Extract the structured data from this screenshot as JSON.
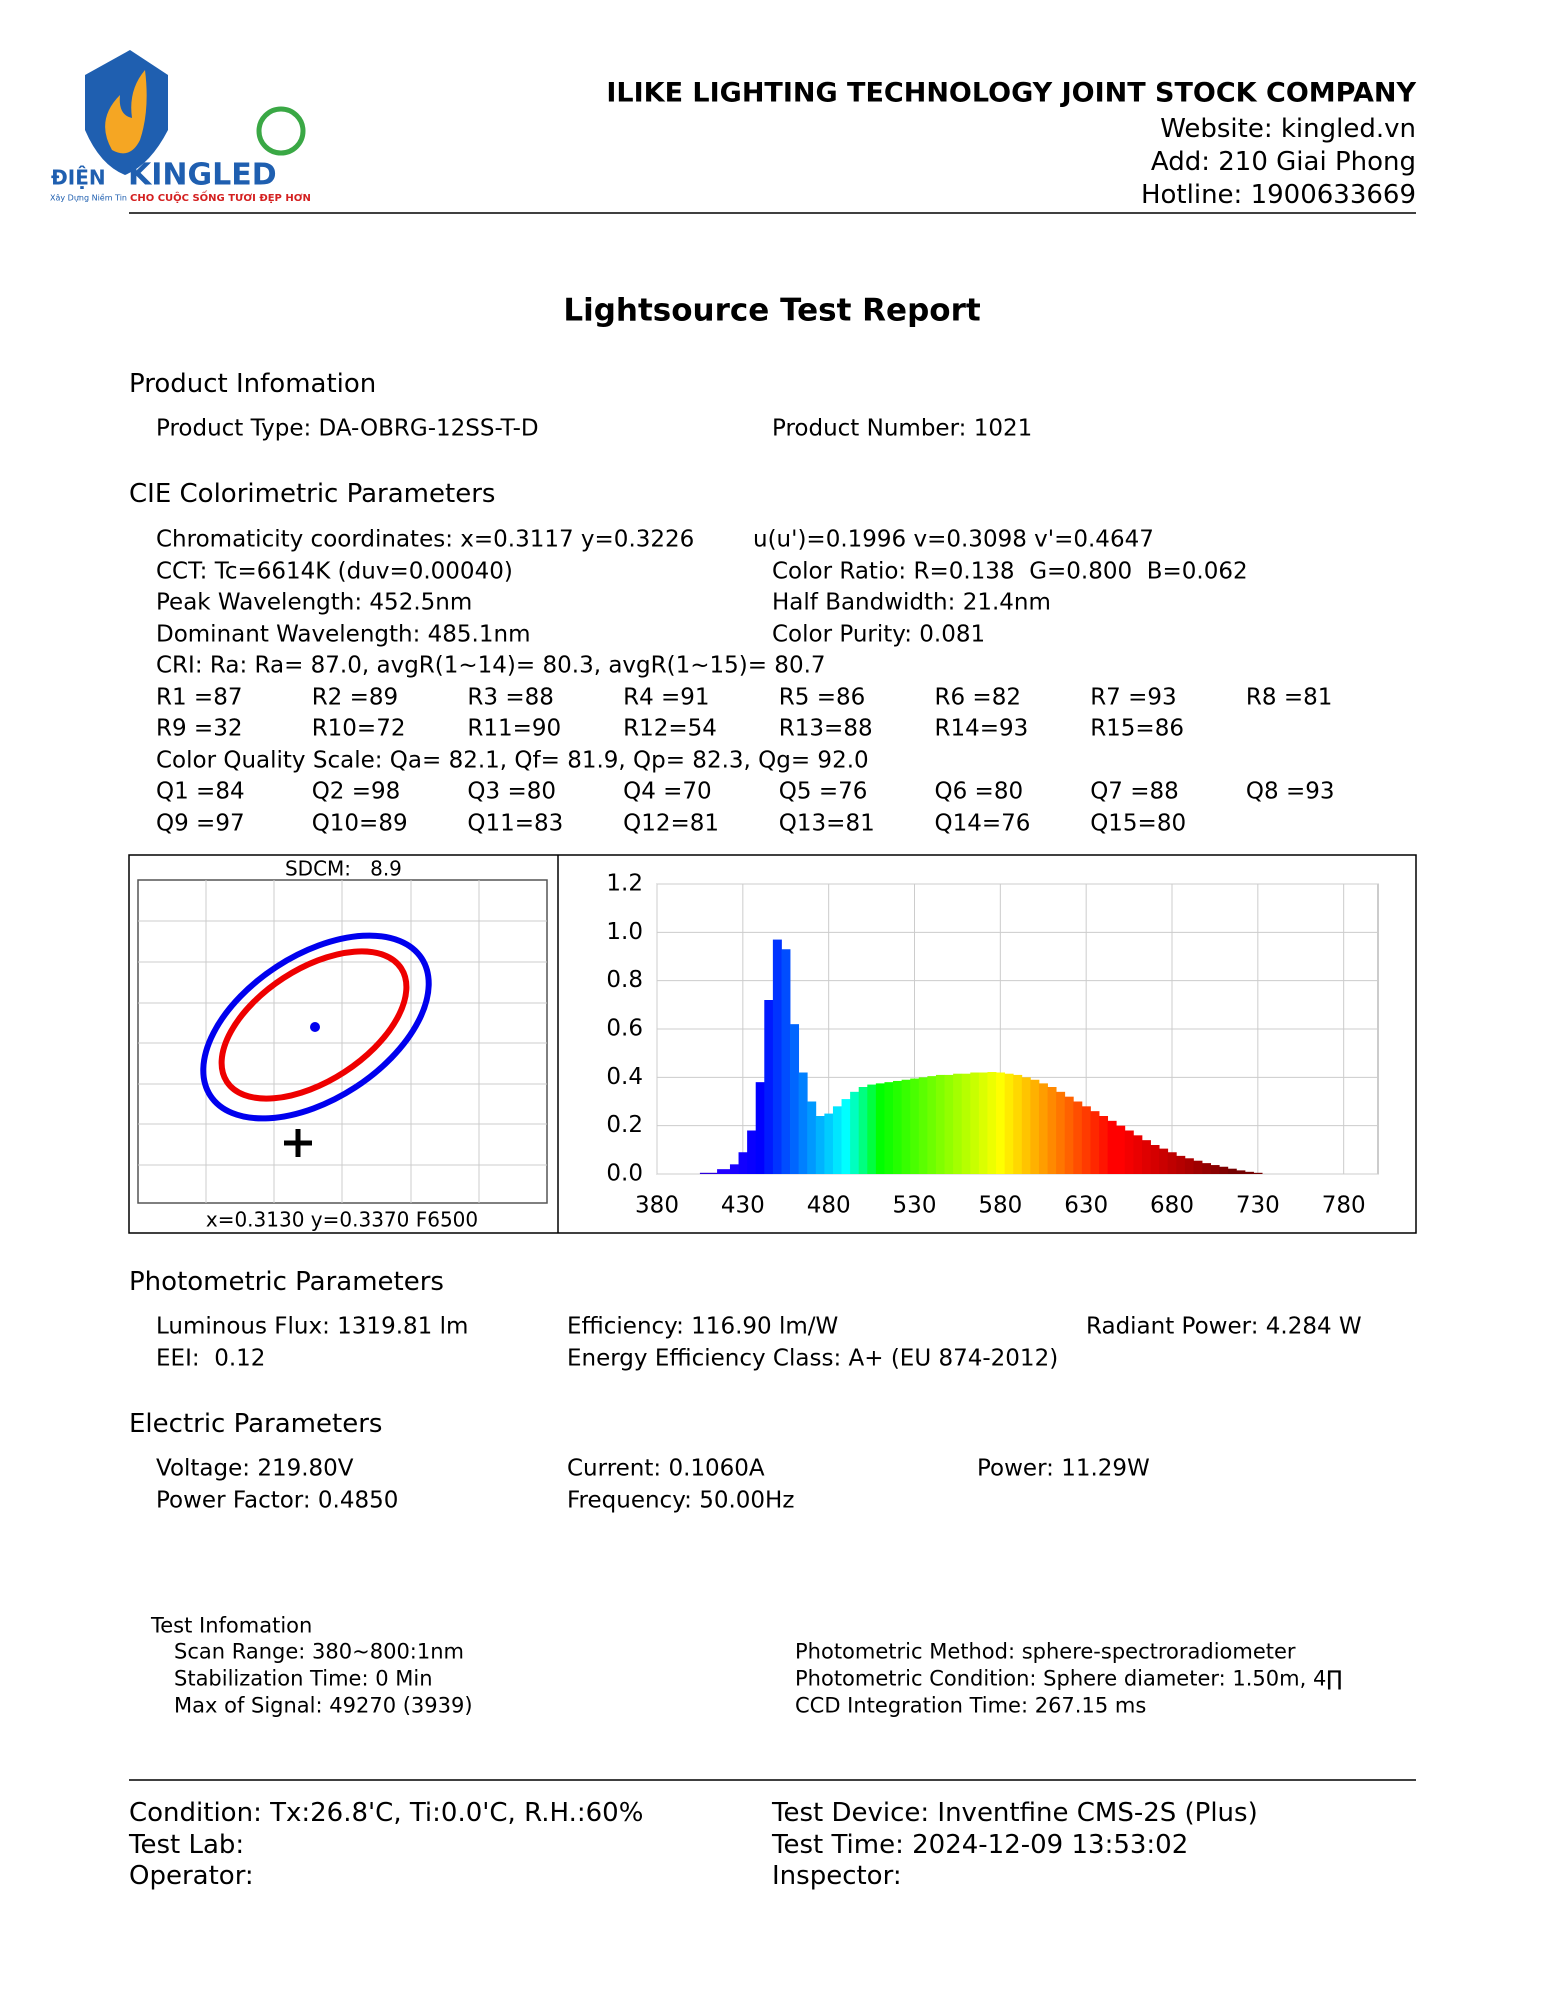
{
  "header": {
    "company": "ILIKE LIGHTING TECHNOLOGY JOINT STOCK COMPANY",
    "website": "Website: kingled.vn",
    "address": "Add: 210 Giai Phong",
    "hotline": "Hotline: 1900633669",
    "logo": {
      "brand_left": "ĐIỆN",
      "brand": "KINGLED",
      "slogan": "CHO CUỘC SỐNG TƯƠI ĐẸP HƠN",
      "tagline": "Xây Dựng Niềm Tin"
    }
  },
  "title": "Lightsource Test Report",
  "product": {
    "heading": "Product Infomation",
    "type": "Product Type: DA-OBRG-12SS-T-D",
    "number": "Product Number: 1021"
  },
  "cie": {
    "heading": "CIE Colorimetric Parameters",
    "lines": [
      [
        "Chromaticity coordinates: x=0.3117 y=0.3226",
        "u(u')=0.1996 v=0.3098 v'=0.4647"
      ],
      [
        "CCT: Tc=6614K (duv=0.00040)",
        "Color Ratio: R=0.138  G=0.800  B=0.062"
      ],
      [
        "Peak Wavelength: 452.5nm",
        "Half Bandwidth: 21.4nm"
      ],
      [
        "Dominant Wavelength: 485.1nm",
        "Color Purity: 0.081"
      ]
    ],
    "cri": "CRI: Ra: Ra= 87.0, avgR(1~14)= 80.3, avgR(1~15)= 80.7",
    "r_rows": [
      [
        "R1 =87",
        "R2 =89",
        "R3 =88",
        "R4 =91",
        "R5 =86",
        "R6 =82",
        "R7 =93",
        "R8 =81"
      ],
      [
        "R9 =32",
        "R10=72",
        "R11=90",
        "R12=54",
        "R13=88",
        "R14=93",
        "R15=86"
      ]
    ],
    "cqs": "Color Quality Scale: Qa= 82.1, Qf= 81.9, Qp= 82.3, Qg= 92.0",
    "q_rows": [
      [
        "Q1 =84",
        "Q2 =98",
        "Q3 =80",
        "Q4 =70",
        "Q5 =76",
        "Q6 =80",
        "Q7 =88",
        "Q8 =93"
      ],
      [
        "Q9 =97",
        "Q10=89",
        "Q11=83",
        "Q12=81",
        "Q13=81",
        "Q14=76",
        "Q15=80"
      ]
    ]
  },
  "sdcm": {
    "label": "SDCM:",
    "value": "8.9",
    "reference": "x=0.3130 y=0.3370 F6500"
  },
  "chart_data": {
    "type": "bar",
    "x": [
      400,
      410,
      420,
      425,
      430,
      435,
      440,
      445,
      450,
      455,
      460,
      465,
      470,
      475,
      480,
      485,
      490,
      495,
      500,
      505,
      510,
      515,
      520,
      525,
      530,
      535,
      540,
      545,
      550,
      555,
      560,
      565,
      570,
      575,
      580,
      585,
      590,
      595,
      600,
      605,
      610,
      615,
      620,
      625,
      630,
      635,
      640,
      645,
      650,
      655,
      660,
      665,
      670,
      675,
      680,
      685,
      690,
      695,
      700,
      705,
      710,
      715,
      720,
      725,
      730
    ],
    "values": [
      0.0,
      0.005,
      0.02,
      0.04,
      0.09,
      0.18,
      0.38,
      0.72,
      0.97,
      0.93,
      0.62,
      0.42,
      0.3,
      0.24,
      0.25,
      0.28,
      0.31,
      0.34,
      0.36,
      0.37,
      0.375,
      0.38,
      0.385,
      0.39,
      0.395,
      0.4,
      0.405,
      0.41,
      0.41,
      0.415,
      0.415,
      0.42,
      0.42,
      0.422,
      0.42,
      0.415,
      0.41,
      0.4,
      0.39,
      0.375,
      0.36,
      0.34,
      0.32,
      0.3,
      0.28,
      0.26,
      0.24,
      0.22,
      0.2,
      0.18,
      0.16,
      0.14,
      0.12,
      0.105,
      0.09,
      0.075,
      0.065,
      0.055,
      0.045,
      0.037,
      0.03,
      0.022,
      0.015,
      0.009,
      0.005
    ],
    "xlim": [
      380,
      800
    ],
    "xticks": [
      380,
      430,
      480,
      530,
      580,
      630,
      680,
      730,
      780
    ],
    "ylim": [
      0,
      1.2
    ],
    "yticks": [
      {
        "value": 0,
        "label": "0.0"
      },
      0.2,
      0.4,
      0.6,
      0.8,
      {
        "value": 1,
        "label": "1.0"
      },
      1.2
    ],
    "grid": true,
    "color": "spectral"
  },
  "photometric": {
    "heading": "Photometric Parameters",
    "rows": [
      [
        "Luminous Flux: 1319.81 lm",
        "Efficiency: 116.90 lm/W",
        "Radiant Power: 4.284 W"
      ],
      [
        "EEI:  0.12",
        "Energy Efficiency Class: A+ (EU 874-2012)"
      ]
    ]
  },
  "electric": {
    "heading": "Electric Parameters",
    "rows": [
      [
        "Voltage: 219.80V",
        "Current: 0.1060A",
        "Power: 11.29W"
      ],
      [
        "Power Factor: 0.4850",
        "Frequency: 50.00Hz"
      ]
    ]
  },
  "test_info": {
    "heading": "Test Infomation",
    "left": [
      "Scan Range: 380~800:1nm",
      "Stabilization Time: 0 Min",
      "Max of Signal: 49270 (3939)"
    ],
    "right": [
      "Photometric Method: sphere-spectroradiometer",
      "Photometric Condition: Sphere diameter: 1.50m, 4∏",
      "CCD Integration Time: 267.15 ms"
    ]
  },
  "footer": {
    "rows": [
      [
        "Condition: Tx:26.8'C, Ti:0.0'C, R.H.:60%",
        "Test Device: Inventfine CMS-2S (Plus)"
      ],
      [
        "Test Lab:",
        "Test Time: 2024-12-09 13:53:02"
      ],
      [
        "Operator:",
        "Inspector:"
      ]
    ]
  }
}
